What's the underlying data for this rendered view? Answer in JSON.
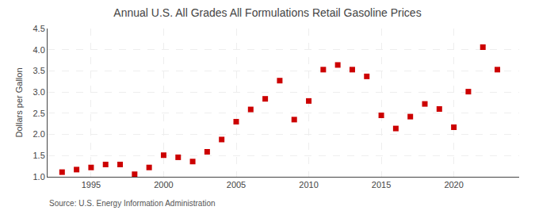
{
  "chart_data": {
    "type": "scatter",
    "title": "Annual U.S. All Grades All Formulations Retail Gasoline Prices",
    "ylabel": "Dollars per Gallon",
    "annotation": "Source: U.S. Energy Information Administration",
    "x": [
      1993,
      1994,
      1995,
      1996,
      1997,
      1998,
      1999,
      2000,
      2001,
      2002,
      2003,
      2004,
      2005,
      2006,
      2007,
      2008,
      2009,
      2010,
      2011,
      2012,
      2013,
      2014,
      2015,
      2016,
      2017,
      2018,
      2019,
      2020,
      2021,
      2022,
      2023
    ],
    "values": [
      1.11,
      1.17,
      1.22,
      1.29,
      1.29,
      1.06,
      1.22,
      1.51,
      1.46,
      1.36,
      1.59,
      1.88,
      2.3,
      2.59,
      2.84,
      3.27,
      2.35,
      2.79,
      3.53,
      3.64,
      3.53,
      3.37,
      2.45,
      2.14,
      2.42,
      2.72,
      2.6,
      2.17,
      3.01,
      4.06,
      3.53
    ],
    "color": "#cc0000",
    "marker": "square",
    "xlim": [
      1992.0,
      2024.5
    ],
    "xticks": [
      1995,
      2000,
      2005,
      2010,
      2015,
      2020
    ],
    "ylim": [
      1.0,
      4.5
    ],
    "yticks": [
      {
        "value": 1.0,
        "label": "1.0"
      },
      1.5,
      {
        "value": 2.0,
        "label": "2.0"
      },
      2.5,
      {
        "value": 3.0,
        "label": "3.0"
      },
      3.5,
      {
        "value": 4.0,
        "label": "4.0"
      },
      4.5
    ],
    "grid": true
  }
}
